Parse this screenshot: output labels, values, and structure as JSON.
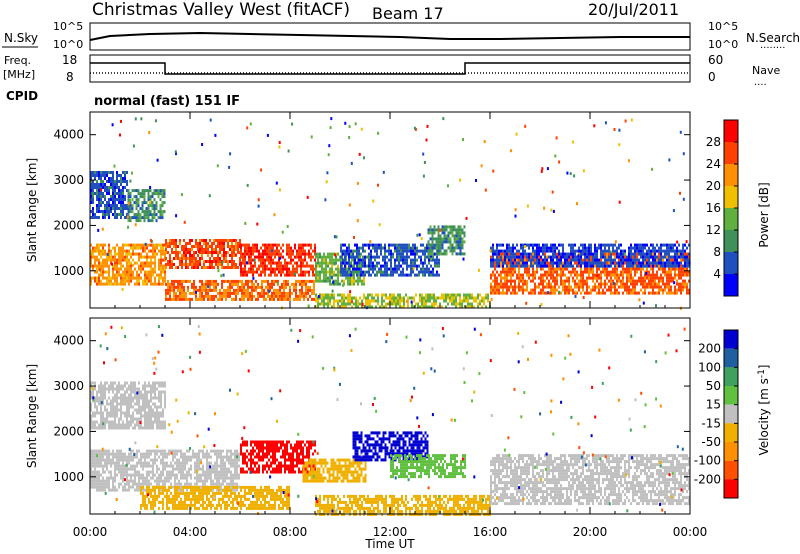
{
  "header": {
    "title": "Christmas Valley West (fitACF)",
    "beam": "Beam 17",
    "date": "20/Jul/2011"
  },
  "top_panels": {
    "nsky_label": "N.Sky",
    "nsearch_label": "N.Search",
    "nsearch_dots": "........",
    "noise_ticks_left": [
      "10^5",
      "10^0"
    ],
    "noise_ticks_right": [
      "10^5",
      "10^0"
    ],
    "freq_label_1": "Freq.",
    "freq_label_2": "[MHz]",
    "freq_ticks": [
      "18",
      "8"
    ],
    "nave_label": "Nave",
    "nave_dots": "....",
    "nave_ticks": [
      "60",
      "0"
    ],
    "cpid_label": "CPID",
    "cpid_value": "normal (fast) 151 IF"
  },
  "colors": {
    "power_scale": [
      "#0000ff",
      "#2050c0",
      "#40905a",
      "#60b040",
      "#f0c000",
      "#ff9000",
      "#ff4000",
      "#ff0000"
    ],
    "velocity_scale": [
      "#0000d0",
      "#2060a0",
      "#40a060",
      "#60c040",
      "#c0c0c0",
      "#f0b000",
      "#ff9000",
      "#ff5000",
      "#ff0000"
    ]
  },
  "chart_data": [
    {
      "type": "heatmap",
      "title": "Power",
      "xlabel": "",
      "ylabel": "Slant Range [km]",
      "x_ticks": [
        "00:00",
        "04:00",
        "08:00",
        "12:00",
        "16:00",
        "20:00",
        "00:00"
      ],
      "x_hours": [
        0,
        4,
        8,
        12,
        16,
        20,
        24
      ],
      "y_ticks": [
        "4000",
        "3000",
        "2000",
        "1000"
      ],
      "ylim": [
        180,
        4500
      ],
      "xlim": [
        0,
        24
      ],
      "colorbar_label": "Power [dB]",
      "colorbar_ticks": [
        "28",
        "24",
        "20",
        "16",
        "12",
        "8",
        "4"
      ],
      "colorbar_range": [
        0,
        32
      ],
      "regions": [
        {
          "x": [
            0,
            1.5
          ],
          "y": [
            2200,
            3200
          ],
          "value": 6
        },
        {
          "x": [
            1.5,
            3
          ],
          "y": [
            2100,
            2800
          ],
          "value": 10
        },
        {
          "x": [
            0,
            3
          ],
          "y": [
            700,
            1600
          ],
          "value": 22
        },
        {
          "x": [
            3,
            6
          ],
          "y": [
            1100,
            1700
          ],
          "value": 26
        },
        {
          "x": [
            6,
            9
          ],
          "y": [
            900,
            1600
          ],
          "value": 27
        },
        {
          "x": [
            3,
            9
          ],
          "y": [
            350,
            800
          ],
          "value": 24
        },
        {
          "x": [
            9,
            11
          ],
          "y": [
            700,
            1400
          ],
          "value": 14
        },
        {
          "x": [
            10,
            14
          ],
          "y": [
            900,
            1600
          ],
          "value": 6
        },
        {
          "x": [
            13.5,
            15
          ],
          "y": [
            1400,
            2000
          ],
          "value": 10
        },
        {
          "x": [
            16,
            24
          ],
          "y": [
            500,
            1400
          ],
          "value": 25
        },
        {
          "x": [
            16,
            24
          ],
          "y": [
            1100,
            1600
          ],
          "value": 5
        },
        {
          "x": [
            9,
            16
          ],
          "y": [
            200,
            500
          ],
          "value": 16
        }
      ]
    },
    {
      "type": "heatmap",
      "title": "Velocity",
      "xlabel": "Time UT",
      "ylabel": "Slant Range [km]",
      "x_ticks": [
        "00:00",
        "04:00",
        "08:00",
        "12:00",
        "16:00",
        "20:00",
        "00:00"
      ],
      "x_hours": [
        0,
        4,
        8,
        12,
        16,
        20,
        24
      ],
      "y_ticks": [
        "4000",
        "3000",
        "2000",
        "1000"
      ],
      "ylim": [
        180,
        4500
      ],
      "xlim": [
        0,
        24
      ],
      "colorbar_label": "Velocity [m s^-1]",
      "colorbar_ticks": [
        "200",
        "100",
        "50",
        "15",
        "-15",
        "-50",
        "-100",
        "-200"
      ],
      "colorbar_range": [
        -250,
        250
      ],
      "regions": [
        {
          "x": [
            0,
            3
          ],
          "y": [
            2100,
            3100
          ],
          "value": 0
        },
        {
          "x": [
            0,
            6
          ],
          "y": [
            700,
            1600
          ],
          "value": 0
        },
        {
          "x": [
            2,
            8
          ],
          "y": [
            300,
            800
          ],
          "value": -60
        },
        {
          "x": [
            6,
            9
          ],
          "y": [
            1100,
            1800
          ],
          "value": -200
        },
        {
          "x": [
            8.5,
            11
          ],
          "y": [
            900,
            1400
          ],
          "value": -80
        },
        {
          "x": [
            10.5,
            13.5
          ],
          "y": [
            1400,
            2000
          ],
          "value": 200
        },
        {
          "x": [
            12,
            15
          ],
          "y": [
            1000,
            1500
          ],
          "value": 60
        },
        {
          "x": [
            9,
            16
          ],
          "y": [
            200,
            600
          ],
          "value": -40
        },
        {
          "x": [
            16,
            24
          ],
          "y": [
            400,
            1500
          ],
          "value": 0
        }
      ]
    }
  ]
}
